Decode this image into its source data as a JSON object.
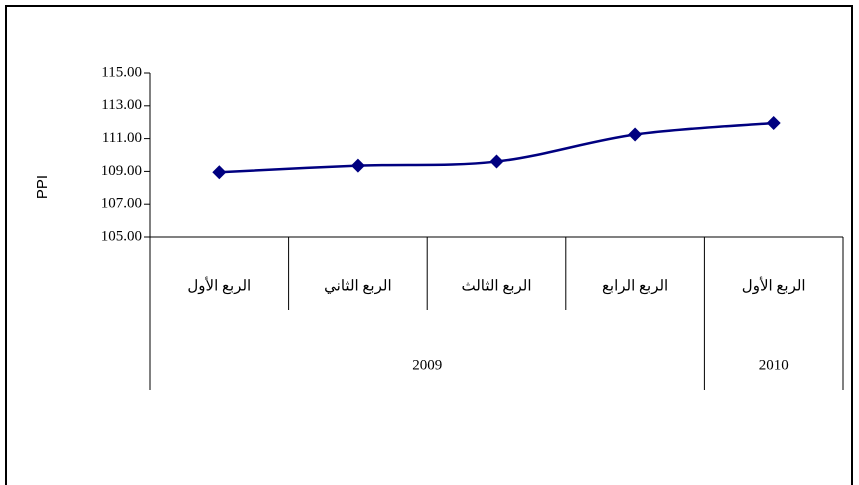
{
  "chart_data": {
    "type": "line",
    "y_label": "PPI",
    "category_groups": [
      {
        "name": "2009",
        "categories": [
          "الربع الأول",
          "الربع الثاني",
          "الربع الثالث",
          "الربع الرابع"
        ]
      },
      {
        "name": "2010",
        "categories": [
          "الربع الأول"
        ]
      }
    ],
    "values": [
      108.95,
      109.35,
      109.6,
      111.25,
      111.95
    ],
    "color": "#000080",
    "ylim": [
      105,
      115
    ],
    "yticks": [
      {
        "value": 105,
        "label": "105.00"
      },
      {
        "value": 107,
        "label": "107.00"
      },
      {
        "value": 109,
        "label": "109.00"
      },
      {
        "value": 111,
        "label": "111.00"
      },
      {
        "value": 113,
        "label": "113.00"
      },
      {
        "value": 115,
        "label": "115.00"
      }
    ],
    "grid": false
  }
}
